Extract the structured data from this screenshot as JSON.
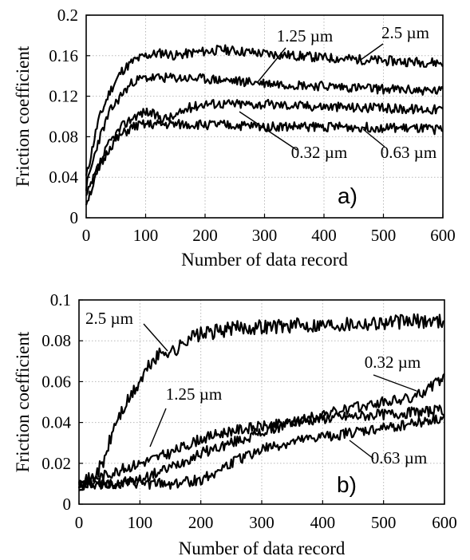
{
  "chart_data": [
    {
      "type": "line",
      "panel_label": "a)",
      "xlabel": "Number of data record",
      "ylabel": "Friction coefficient",
      "xlim": [
        0,
        600
      ],
      "ylim": [
        0,
        0.2
      ],
      "xticks": [
        "0",
        "100",
        "200",
        "300",
        "400",
        "500",
        "600"
      ],
      "yticks": [
        "0",
        "0.04",
        "0.08",
        "0.12",
        "0.16",
        "0.2"
      ],
      "grid": true,
      "series": [
        {
          "name": "2.5 µm",
          "x": [
            0,
            20,
            40,
            60,
            80,
            100,
            130,
            150,
            180,
            230,
            300,
            400,
            500,
            600
          ],
          "y": [
            0.04,
            0.095,
            0.125,
            0.145,
            0.155,
            0.16,
            0.163,
            0.16,
            0.163,
            0.166,
            0.162,
            0.158,
            0.155,
            0.153
          ]
        },
        {
          "name": "1.25 µm",
          "x": [
            0,
            20,
            40,
            60,
            80,
            100,
            130,
            150,
            200,
            300,
            400,
            500,
            600
          ],
          "y": [
            0.03,
            0.075,
            0.105,
            0.122,
            0.135,
            0.138,
            0.138,
            0.138,
            0.137,
            0.133,
            0.13,
            0.127,
            0.125
          ]
        },
        {
          "name": "0.32 µm",
          "x": [
            0,
            20,
            40,
            60,
            80,
            100,
            130,
            150,
            170,
            200,
            300,
            400,
            500,
            600
          ],
          "y": [
            0.02,
            0.05,
            0.075,
            0.09,
            0.1,
            0.105,
            0.098,
            0.1,
            0.108,
            0.113,
            0.112,
            0.11,
            0.108,
            0.107
          ]
        },
        {
          "name": "0.63 µm",
          "x": [
            0,
            20,
            40,
            60,
            80,
            100,
            150,
            200,
            300,
            400,
            500,
            600
          ],
          "y": [
            0.015,
            0.045,
            0.07,
            0.082,
            0.09,
            0.092,
            0.092,
            0.092,
            0.09,
            0.09,
            0.089,
            0.087
          ]
        }
      ],
      "annotations": [
        {
          "text": "1.25 µm",
          "series": 1
        },
        {
          "text": "2.5 µm",
          "series": 0
        },
        {
          "text": "0.32 µm",
          "series": 2
        },
        {
          "text": "0.63 µm",
          "series": 3
        }
      ]
    },
    {
      "type": "line",
      "panel_label": "b)",
      "xlabel": "Number of data record",
      "ylabel": "Friction coefficient",
      "xlim": [
        0,
        600
      ],
      "ylim": [
        0,
        0.1
      ],
      "xticks": [
        "0",
        "100",
        "200",
        "300",
        "400",
        "500",
        "600"
      ],
      "yticks": [
        "0",
        "0.02",
        "0.04",
        "0.06",
        "0.08",
        "0.1"
      ],
      "grid": true,
      "series": [
        {
          "name": "2.5 µm",
          "x": [
            0,
            20,
            40,
            60,
            80,
            100,
            120,
            140,
            160,
            180,
            200,
            250,
            300,
            400,
            500,
            600
          ],
          "y": [
            0.01,
            0.012,
            0.02,
            0.04,
            0.05,
            0.06,
            0.07,
            0.075,
            0.075,
            0.082,
            0.083,
            0.086,
            0.087,
            0.088,
            0.089,
            0.09
          ]
        },
        {
          "name": "1.25 µm",
          "x": [
            0,
            50,
            100,
            150,
            200,
            250,
            300,
            350,
            400,
            450,
            500,
            550,
            600
          ],
          "y": [
            0.01,
            0.015,
            0.02,
            0.025,
            0.032,
            0.036,
            0.038,
            0.04,
            0.042,
            0.043,
            0.044,
            0.045,
            0.046
          ]
        },
        {
          "name": "0.32 µm",
          "x": [
            0,
            50,
            100,
            150,
            200,
            250,
            300,
            350,
            400,
            450,
            500,
            550,
            580,
            600
          ],
          "y": [
            0.01,
            0.01,
            0.012,
            0.018,
            0.025,
            0.03,
            0.035,
            0.04,
            0.044,
            0.047,
            0.05,
            0.052,
            0.058,
            0.062
          ]
        },
        {
          "name": "0.63 µm",
          "x": [
            0,
            50,
            100,
            150,
            200,
            250,
            300,
            350,
            400,
            450,
            500,
            550,
            600
          ],
          "y": [
            0.01,
            0.01,
            0.01,
            0.01,
            0.012,
            0.02,
            0.027,
            0.03,
            0.033,
            0.035,
            0.037,
            0.04,
            0.042
          ]
        }
      ],
      "annotations": [
        {
          "text": "2.5 µm",
          "series": 0
        },
        {
          "text": "1.25 µm",
          "series": 1
        },
        {
          "text": "0.32 µm",
          "series": 2
        },
        {
          "text": "0.63 µm",
          "series": 3
        }
      ]
    }
  ]
}
